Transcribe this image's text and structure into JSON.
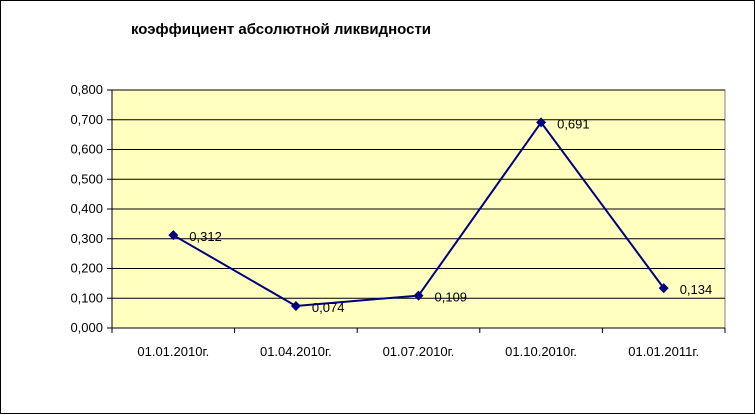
{
  "chart_data": {
    "type": "line",
    "title": "коэффициент абсолютной ликвидности",
    "categories": [
      "01.01.2010г.",
      "01.04.2010г.",
      "01.07.2010г.",
      "01.10.2010г.",
      "01.01.2011г."
    ],
    "series": [
      {
        "values": [
          0.312,
          0.074,
          0.109,
          0.691,
          0.134
        ],
        "value_labels": [
          "0,312",
          "0,074",
          "0,109",
          "0,691",
          "0,134"
        ]
      }
    ],
    "ylim": [
      0,
      0.8
    ],
    "yticks": [
      0,
      0.1,
      0.2,
      0.3,
      0.4,
      0.5,
      0.6,
      0.7,
      0.8
    ],
    "ytick_labels": [
      "0,000",
      "0,100",
      "0,200",
      "0,300",
      "0,400",
      "0,500",
      "0,600",
      "0,700",
      "0,800"
    ],
    "xlabel": "",
    "ylabel": "",
    "grid": true,
    "legend": "none",
    "colors": {
      "plot_background": "#FFFFC0",
      "series_line": "#000080",
      "grid": "#000000"
    }
  }
}
